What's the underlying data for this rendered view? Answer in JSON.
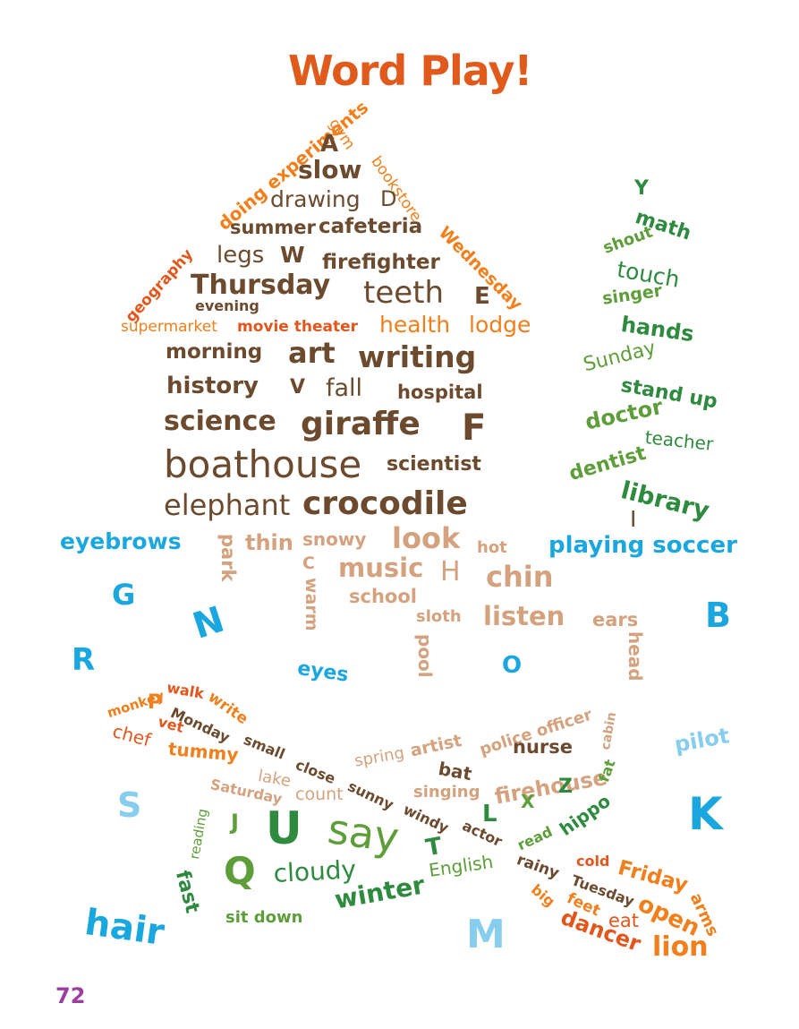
{
  "title": "Word Play!",
  "page_number": "72",
  "colors": {
    "title": "#e05a1c",
    "page_number": "#9b3f9f",
    "brown": "#6b4a2e",
    "tan": "#d4a27e",
    "orange": "#f07f1c",
    "red_orange": "#e2561c",
    "green": "#2e8a3e",
    "light_green": "#5d9e3a",
    "blue": "#1aa6de",
    "light_blue": "#86cdee"
  },
  "house_words": [
    "gym",
    "bookstore",
    "Wednesday",
    "doing experiments",
    "geography",
    "A",
    "slow",
    "drawing",
    "D",
    "summer",
    "cafeteria",
    "legs",
    "W",
    "firefighter",
    "Thursday",
    "teeth",
    "E",
    "evening",
    "supermarket",
    "movie theater",
    "health",
    "lodge",
    "morning",
    "art",
    "writing",
    "history",
    "V",
    "fall",
    "hospital",
    "science",
    "giraffe",
    "F",
    "boathouse",
    "scientist",
    "elephant",
    "crocodile"
  ],
  "tree_words": [
    "Y",
    "math",
    "shout",
    "touch",
    "singer",
    "hands",
    "Sunday",
    "stand up",
    "doctor",
    "teacher",
    "dentist",
    "library",
    "I"
  ],
  "middle_words": [
    "eyebrows",
    "park",
    "thin",
    "snowy",
    "look",
    "hot",
    "playing soccer",
    "C",
    "music",
    "H",
    "chin",
    "warm",
    "school",
    "sloth",
    "listen",
    "ears",
    "head",
    "pool",
    "G",
    "N",
    "B",
    "R",
    "eyes",
    "O"
  ],
  "bottom_words": [
    "monkey",
    "walk",
    "write",
    "P",
    "Monday",
    "vet",
    "chef",
    "tummy",
    "small",
    "close",
    "lake",
    "Saturday",
    "count",
    "spring",
    "artist",
    "bat",
    "sunny",
    "police officer",
    "nurse",
    "cabin",
    "firehouse",
    "fat",
    "singing",
    "Z",
    "X",
    "L",
    "hippo",
    "windy",
    "read",
    "pilot",
    "S",
    "reading",
    "J",
    "U",
    "say",
    "T",
    "actor",
    "K",
    "Q",
    "cloudy",
    "English",
    "rainy",
    "cold",
    "Friday",
    "fast",
    "Tuesday",
    "arms",
    "big",
    "feet",
    "open",
    "winter",
    "eat",
    "hair",
    "sit down",
    "dancer",
    "lion",
    "M"
  ]
}
